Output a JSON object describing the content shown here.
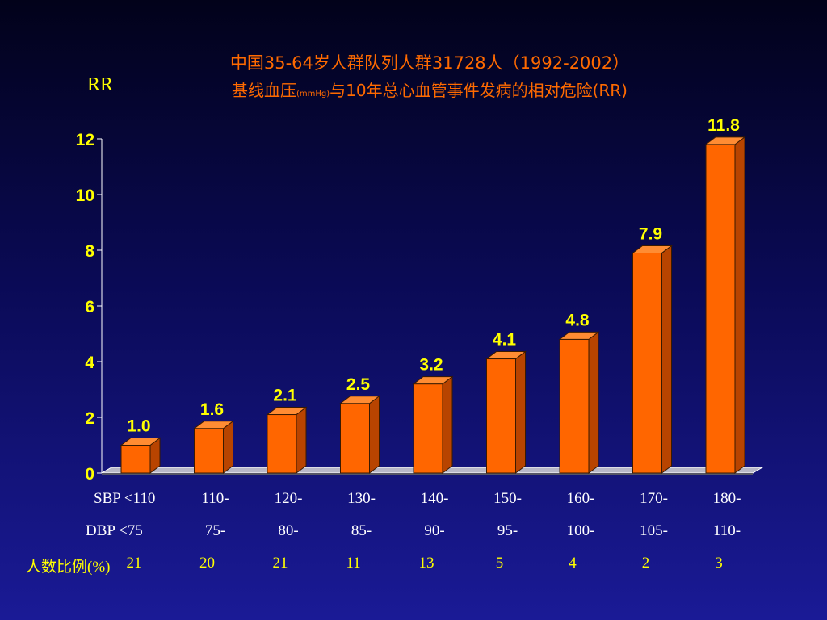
{
  "header": {
    "title_line1": "中国35-64岁人群队列人群31728人（1992-2002）",
    "title_line2_a": "基线血压",
    "title_line2_unit": "(mmHg)",
    "title_line2_b": "与10年总心血管事件发病的相对危险(RR)"
  },
  "colors": {
    "bar_front": "#ff6600",
    "bar_top": "#ff8c33",
    "bar_side": "#b84400",
    "value_label": "#ffff00",
    "axis": "#ffffff"
  },
  "chart_data": {
    "type": "bar",
    "ylabel": "RR",
    "ylim": [
      0,
      12
    ],
    "yticks": [
      0,
      2,
      4,
      6,
      8,
      10,
      12
    ],
    "values": [
      1.0,
      1.6,
      2.1,
      2.5,
      3.2,
      4.1,
      4.8,
      7.9,
      11.8
    ],
    "value_labels": [
      "1.0",
      "1.6",
      "2.1",
      "2.5",
      "3.2",
      "4.1",
      "4.8",
      "7.9",
      "11.8"
    ],
    "grid": false
  },
  "table": {
    "sbp_label": "SBP  <110",
    "dbp_label": "DBP  <75",
    "pct_label": "人数比例(%)",
    "sbp": [
      "",
      "110-",
      "120-",
      "130-",
      "140-",
      "150-",
      "160-",
      "170-",
      "180-"
    ],
    "dbp": [
      "",
      "75-",
      "80-",
      "85-",
      "90-",
      "95-",
      "100-",
      "105-",
      "110-"
    ],
    "pct": [
      "21",
      "20",
      "21",
      "11",
      "13",
      "5",
      "4",
      "2",
      "3"
    ]
  }
}
